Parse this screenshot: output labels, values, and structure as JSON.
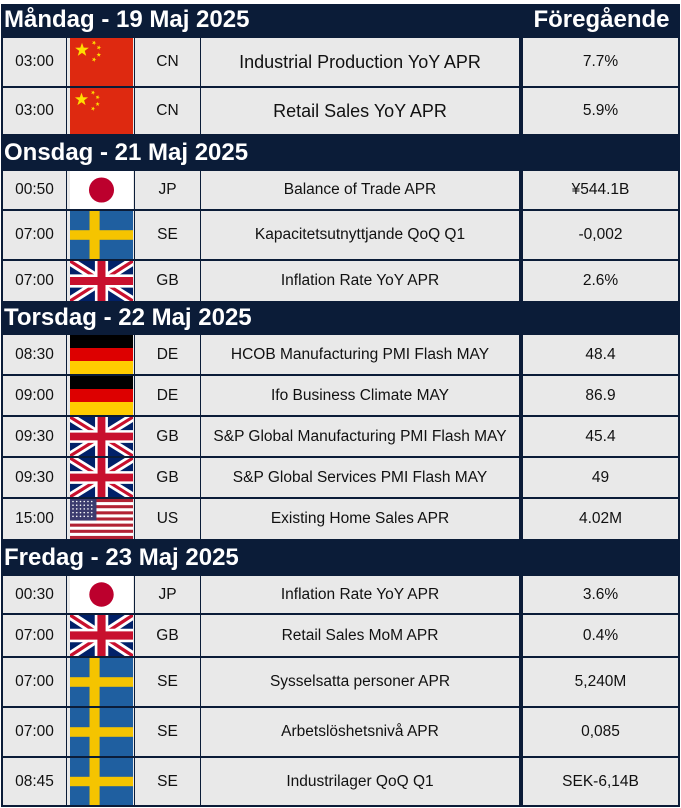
{
  "header": {
    "previous_label": "Föregående"
  },
  "days": [
    {
      "title": "Måndag - 19 Maj 2025",
      "events": [
        {
          "time": "03:00",
          "flag_icon": "china-flag-icon",
          "country": "CN",
          "event": "Industrial Production YoY APR",
          "previous": "7.7%"
        },
        {
          "time": "03:00",
          "flag_icon": "china-flag-icon",
          "country": "CN",
          "event": "Retail Sales YoY APR",
          "previous": "5.9%"
        }
      ]
    },
    {
      "title": "Onsdag - 21 Maj 2025",
      "events": [
        {
          "time": "00:50",
          "flag_icon": "japan-flag-icon",
          "country": "JP",
          "event": "Balance of Trade APR",
          "previous": "¥544.1B"
        },
        {
          "time": "07:00",
          "flag_icon": "sweden-flag-icon",
          "country": "SE",
          "event": "Kapacitetsutnyttjande QoQ Q1",
          "previous": "-0,002"
        },
        {
          "time": "07:00",
          "flag_icon": "uk-flag-icon",
          "country": "GB",
          "event": "Inflation Rate YoY APR",
          "previous": "2.6%"
        }
      ]
    },
    {
      "title": "Torsdag - 22 Maj 2025",
      "events": [
        {
          "time": "08:30",
          "flag_icon": "germany-flag-icon",
          "country": "DE",
          "event": "HCOB Manufacturing PMI Flash MAY",
          "previous": "48.4"
        },
        {
          "time": "09:00",
          "flag_icon": "germany-flag-icon",
          "country": "DE",
          "event": "Ifo Business Climate MAY",
          "previous": "86.9"
        },
        {
          "time": "09:30",
          "flag_icon": "uk-flag-icon",
          "country": "GB",
          "event": "S&P Global Manufacturing PMI Flash MAY",
          "previous": "45.4"
        },
        {
          "time": "09:30",
          "flag_icon": "uk-flag-icon",
          "country": "GB",
          "event": "S&P Global Services PMI Flash MAY",
          "previous": "49"
        },
        {
          "time": "15:00",
          "flag_icon": "usa-flag-icon",
          "country": "US",
          "event": "Existing Home Sales APR",
          "previous": "4.02M"
        }
      ]
    },
    {
      "title": "Fredag - 23 Maj 2025",
      "events": [
        {
          "time": "00:30",
          "flag_icon": "japan-flag-icon",
          "country": "JP",
          "event": "Inflation Rate YoY APR",
          "previous": "3.6%"
        },
        {
          "time": "07:00",
          "flag_icon": "uk-flag-icon",
          "country": "GB",
          "event": "Retail Sales MoM APR",
          "previous": "0.4%"
        },
        {
          "time": "07:00",
          "flag_icon": "sweden-flag-icon",
          "country": "SE",
          "event": "Sysselsatta personer APR",
          "previous": "5,240M"
        },
        {
          "time": "07:00",
          "flag_icon": "sweden-flag-icon",
          "country": "SE",
          "event": "Arbetslöshetsnivå APR",
          "previous": "0,085"
        },
        {
          "time": "08:45",
          "flag_icon": "sweden-flag-icon",
          "country": "SE",
          "event": "Industrilager QoQ Q1",
          "previous": "SEK-6,14B"
        }
      ]
    }
  ],
  "colors": {
    "header_bg": "#0b1c38",
    "row_bg": "#e9e9e9",
    "text": "#111111"
  }
}
